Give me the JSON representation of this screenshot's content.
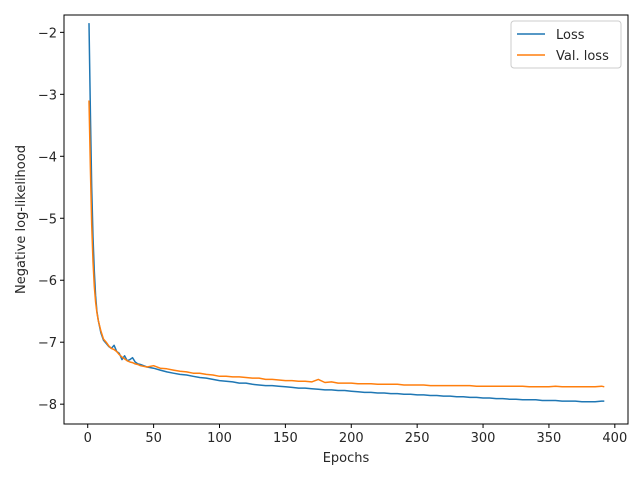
{
  "chart_data": {
    "type": "line",
    "title": "",
    "xlabel": "Epochs",
    "ylabel": "Negative log-likelihood",
    "xlim": [
      -18,
      410
    ],
    "ylim": [
      -8.32,
      -1.72
    ],
    "xticks": [
      0,
      50,
      100,
      150,
      200,
      250,
      300,
      350,
      400
    ],
    "yticks": [
      -8,
      -7,
      -6,
      -5,
      -4,
      -3,
      -2
    ],
    "grid": false,
    "legend_position": "top-right",
    "series": [
      {
        "name": "Loss",
        "color": "#1f77b4",
        "x": [
          1,
          2,
          3,
          4,
          5,
          6,
          7,
          8,
          10,
          12,
          14,
          16,
          18,
          20,
          22,
          24,
          26,
          28,
          30,
          32,
          34,
          36,
          38,
          40,
          45,
          50,
          55,
          60,
          65,
          70,
          75,
          80,
          85,
          90,
          95,
          100,
          105,
          110,
          115,
          120,
          125,
          130,
          135,
          140,
          145,
          150,
          155,
          160,
          165,
          170,
          175,
          180,
          185,
          190,
          195,
          200,
          205,
          210,
          215,
          220,
          225,
          230,
          235,
          240,
          245,
          250,
          255,
          260,
          265,
          270,
          275,
          280,
          285,
          290,
          295,
          300,
          305,
          310,
          315,
          320,
          325,
          330,
          335,
          340,
          345,
          350,
          355,
          360,
          365,
          370,
          375,
          380,
          385,
          390,
          392
        ],
        "y": [
          -1.85,
          -3.3,
          -4.5,
          -5.3,
          -5.85,
          -6.25,
          -6.5,
          -6.65,
          -6.85,
          -6.97,
          -7.02,
          -7.07,
          -7.1,
          -7.05,
          -7.15,
          -7.18,
          -7.28,
          -7.22,
          -7.3,
          -7.28,
          -7.25,
          -7.32,
          -7.35,
          -7.36,
          -7.4,
          -7.42,
          -7.45,
          -7.48,
          -7.5,
          -7.52,
          -7.53,
          -7.55,
          -7.57,
          -7.58,
          -7.6,
          -7.62,
          -7.63,
          -7.64,
          -7.66,
          -7.66,
          -7.68,
          -7.69,
          -7.7,
          -7.7,
          -7.71,
          -7.72,
          -7.73,
          -7.74,
          -7.74,
          -7.75,
          -7.76,
          -7.77,
          -7.77,
          -7.78,
          -7.78,
          -7.79,
          -7.8,
          -7.81,
          -7.81,
          -7.82,
          -7.82,
          -7.83,
          -7.83,
          -7.84,
          -7.84,
          -7.85,
          -7.85,
          -7.86,
          -7.86,
          -7.87,
          -7.87,
          -7.88,
          -7.88,
          -7.89,
          -7.89,
          -7.9,
          -7.9,
          -7.91,
          -7.91,
          -7.92,
          -7.92,
          -7.93,
          -7.93,
          -7.93,
          -7.94,
          -7.94,
          -7.94,
          -7.95,
          -7.95,
          -7.95,
          -7.96,
          -7.96,
          -7.96,
          -7.95,
          -7.95
        ]
      },
      {
        "name": "Val. loss",
        "color": "#ff7f0e",
        "x": [
          1,
          2,
          3,
          4,
          5,
          6,
          7,
          8,
          10,
          12,
          14,
          16,
          18,
          20,
          22,
          24,
          26,
          28,
          30,
          32,
          34,
          36,
          38,
          40,
          45,
          50,
          55,
          60,
          65,
          70,
          75,
          80,
          85,
          90,
          95,
          100,
          105,
          110,
          115,
          120,
          125,
          130,
          135,
          140,
          145,
          150,
          155,
          160,
          165,
          170,
          175,
          180,
          185,
          190,
          195,
          200,
          205,
          210,
          215,
          220,
          225,
          230,
          235,
          240,
          245,
          250,
          255,
          260,
          265,
          270,
          275,
          280,
          285,
          290,
          295,
          300,
          305,
          310,
          315,
          320,
          325,
          330,
          335,
          340,
          345,
          350,
          355,
          360,
          365,
          370,
          375,
          380,
          385,
          390,
          392
        ],
        "y": [
          -3.1,
          -4.2,
          -5.1,
          -5.7,
          -6.1,
          -6.35,
          -6.52,
          -6.65,
          -6.82,
          -6.95,
          -7.0,
          -7.06,
          -7.1,
          -7.12,
          -7.15,
          -7.2,
          -7.24,
          -7.27,
          -7.3,
          -7.32,
          -7.33,
          -7.35,
          -7.36,
          -7.38,
          -7.4,
          -7.38,
          -7.42,
          -7.43,
          -7.45,
          -7.47,
          -7.48,
          -7.5,
          -7.5,
          -7.52,
          -7.53,
          -7.55,
          -7.55,
          -7.56,
          -7.56,
          -7.57,
          -7.58,
          -7.58,
          -7.6,
          -7.6,
          -7.61,
          -7.62,
          -7.62,
          -7.63,
          -7.63,
          -7.64,
          -7.6,
          -7.65,
          -7.64,
          -7.66,
          -7.66,
          -7.66,
          -7.67,
          -7.67,
          -7.67,
          -7.68,
          -7.68,
          -7.68,
          -7.68,
          -7.69,
          -7.69,
          -7.69,
          -7.69,
          -7.7,
          -7.7,
          -7.7,
          -7.7,
          -7.7,
          -7.7,
          -7.7,
          -7.71,
          -7.71,
          -7.71,
          -7.71,
          -7.71,
          -7.71,
          -7.71,
          -7.71,
          -7.72,
          -7.72,
          -7.72,
          -7.72,
          -7.71,
          -7.72,
          -7.72,
          -7.72,
          -7.72,
          -7.72,
          -7.72,
          -7.71,
          -7.72
        ]
      }
    ]
  }
}
